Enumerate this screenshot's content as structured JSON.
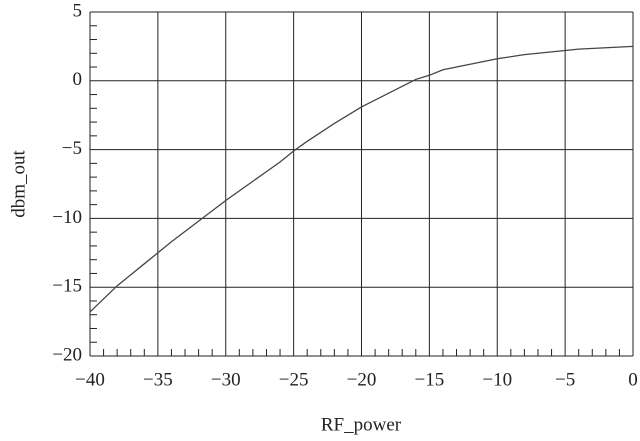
{
  "chart_data": {
    "type": "line",
    "x_label": "RF_power",
    "y_label": "dbm_out",
    "x": [
      -40,
      -38,
      -36,
      -35,
      -34,
      -32,
      -30,
      -28,
      -26,
      -25,
      -24,
      -22,
      -20,
      -18,
      -16,
      -15,
      -14,
      -12,
      -10,
      -8,
      -6,
      -4,
      -2,
      0
    ],
    "series": [
      {
        "color": "#444444",
        "values": [
          -16.8,
          -14.9,
          -13.3,
          -12.5,
          -11.7,
          -10.2,
          -8.7,
          -7.3,
          -5.9,
          -5.1,
          -4.4,
          -3.1,
          -1.9,
          -0.9,
          0.1,
          0.4,
          0.8,
          1.2,
          1.6,
          1.9,
          2.1,
          2.3,
          2.4,
          2.5
        ]
      }
    ],
    "xlim": [
      -40,
      0
    ],
    "ylim": [
      -20,
      5
    ],
    "xticks": [
      {
        "value": -40,
        "label": "−40"
      },
      {
        "value": -35,
        "label": "−35"
      },
      {
        "value": -30,
        "label": "−30"
      },
      {
        "value": -25,
        "label": "−25"
      },
      {
        "value": -20,
        "label": "−20"
      },
      {
        "value": -15,
        "label": "−15"
      },
      {
        "value": -10,
        "label": "−10"
      },
      {
        "value": -5,
        "label": "−5"
      },
      0
    ],
    "yticks": [
      {
        "value": -20,
        "label": "−20"
      },
      {
        "value": -15,
        "label": "−15"
      },
      {
        "value": -10,
        "label": "−10"
      },
      {
        "value": -5,
        "label": "−5"
      },
      0,
      5
    ],
    "grid": true
  }
}
